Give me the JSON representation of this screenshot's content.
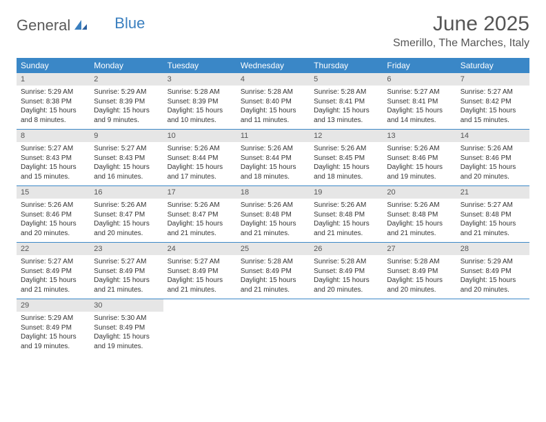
{
  "logo": {
    "part1": "General",
    "part2": "Blue"
  },
  "title": "June 2025",
  "location": "Smerillo, The Marches, Italy",
  "colors": {
    "header_bg": "#3a87c7",
    "daynum_bg": "#e6e6e6",
    "border": "#3a87c7",
    "logo_gray": "#5a5a5a",
    "logo_blue": "#3a7fbf"
  },
  "dayNames": [
    "Sunday",
    "Monday",
    "Tuesday",
    "Wednesday",
    "Thursday",
    "Friday",
    "Saturday"
  ],
  "days": [
    {
      "n": 1,
      "sr": "5:29 AM",
      "ss": "8:38 PM",
      "dl": "15 hours and 8 minutes."
    },
    {
      "n": 2,
      "sr": "5:29 AM",
      "ss": "8:39 PM",
      "dl": "15 hours and 9 minutes."
    },
    {
      "n": 3,
      "sr": "5:28 AM",
      "ss": "8:39 PM",
      "dl": "15 hours and 10 minutes."
    },
    {
      "n": 4,
      "sr": "5:28 AM",
      "ss": "8:40 PM",
      "dl": "15 hours and 11 minutes."
    },
    {
      "n": 5,
      "sr": "5:28 AM",
      "ss": "8:41 PM",
      "dl": "15 hours and 13 minutes."
    },
    {
      "n": 6,
      "sr": "5:27 AM",
      "ss": "8:41 PM",
      "dl": "15 hours and 14 minutes."
    },
    {
      "n": 7,
      "sr": "5:27 AM",
      "ss": "8:42 PM",
      "dl": "15 hours and 15 minutes."
    },
    {
      "n": 8,
      "sr": "5:27 AM",
      "ss": "8:43 PM",
      "dl": "15 hours and 15 minutes."
    },
    {
      "n": 9,
      "sr": "5:27 AM",
      "ss": "8:43 PM",
      "dl": "15 hours and 16 minutes."
    },
    {
      "n": 10,
      "sr": "5:26 AM",
      "ss": "8:44 PM",
      "dl": "15 hours and 17 minutes."
    },
    {
      "n": 11,
      "sr": "5:26 AM",
      "ss": "8:44 PM",
      "dl": "15 hours and 18 minutes."
    },
    {
      "n": 12,
      "sr": "5:26 AM",
      "ss": "8:45 PM",
      "dl": "15 hours and 18 minutes."
    },
    {
      "n": 13,
      "sr": "5:26 AM",
      "ss": "8:46 PM",
      "dl": "15 hours and 19 minutes."
    },
    {
      "n": 14,
      "sr": "5:26 AM",
      "ss": "8:46 PM",
      "dl": "15 hours and 20 minutes."
    },
    {
      "n": 15,
      "sr": "5:26 AM",
      "ss": "8:46 PM",
      "dl": "15 hours and 20 minutes."
    },
    {
      "n": 16,
      "sr": "5:26 AM",
      "ss": "8:47 PM",
      "dl": "15 hours and 20 minutes."
    },
    {
      "n": 17,
      "sr": "5:26 AM",
      "ss": "8:47 PM",
      "dl": "15 hours and 21 minutes."
    },
    {
      "n": 18,
      "sr": "5:26 AM",
      "ss": "8:48 PM",
      "dl": "15 hours and 21 minutes."
    },
    {
      "n": 19,
      "sr": "5:26 AM",
      "ss": "8:48 PM",
      "dl": "15 hours and 21 minutes."
    },
    {
      "n": 20,
      "sr": "5:26 AM",
      "ss": "8:48 PM",
      "dl": "15 hours and 21 minutes."
    },
    {
      "n": 21,
      "sr": "5:27 AM",
      "ss": "8:48 PM",
      "dl": "15 hours and 21 minutes."
    },
    {
      "n": 22,
      "sr": "5:27 AM",
      "ss": "8:49 PM",
      "dl": "15 hours and 21 minutes."
    },
    {
      "n": 23,
      "sr": "5:27 AM",
      "ss": "8:49 PM",
      "dl": "15 hours and 21 minutes."
    },
    {
      "n": 24,
      "sr": "5:27 AM",
      "ss": "8:49 PM",
      "dl": "15 hours and 21 minutes."
    },
    {
      "n": 25,
      "sr": "5:28 AM",
      "ss": "8:49 PM",
      "dl": "15 hours and 21 minutes."
    },
    {
      "n": 26,
      "sr": "5:28 AM",
      "ss": "8:49 PM",
      "dl": "15 hours and 20 minutes."
    },
    {
      "n": 27,
      "sr": "5:28 AM",
      "ss": "8:49 PM",
      "dl": "15 hours and 20 minutes."
    },
    {
      "n": 28,
      "sr": "5:29 AM",
      "ss": "8:49 PM",
      "dl": "15 hours and 20 minutes."
    },
    {
      "n": 29,
      "sr": "5:29 AM",
      "ss": "8:49 PM",
      "dl": "15 hours and 19 minutes."
    },
    {
      "n": 30,
      "sr": "5:30 AM",
      "ss": "8:49 PM",
      "dl": "15 hours and 19 minutes."
    }
  ],
  "labels": {
    "sunrise": "Sunrise:",
    "sunset": "Sunset:",
    "daylight": "Daylight:"
  },
  "startWeekday": 0
}
